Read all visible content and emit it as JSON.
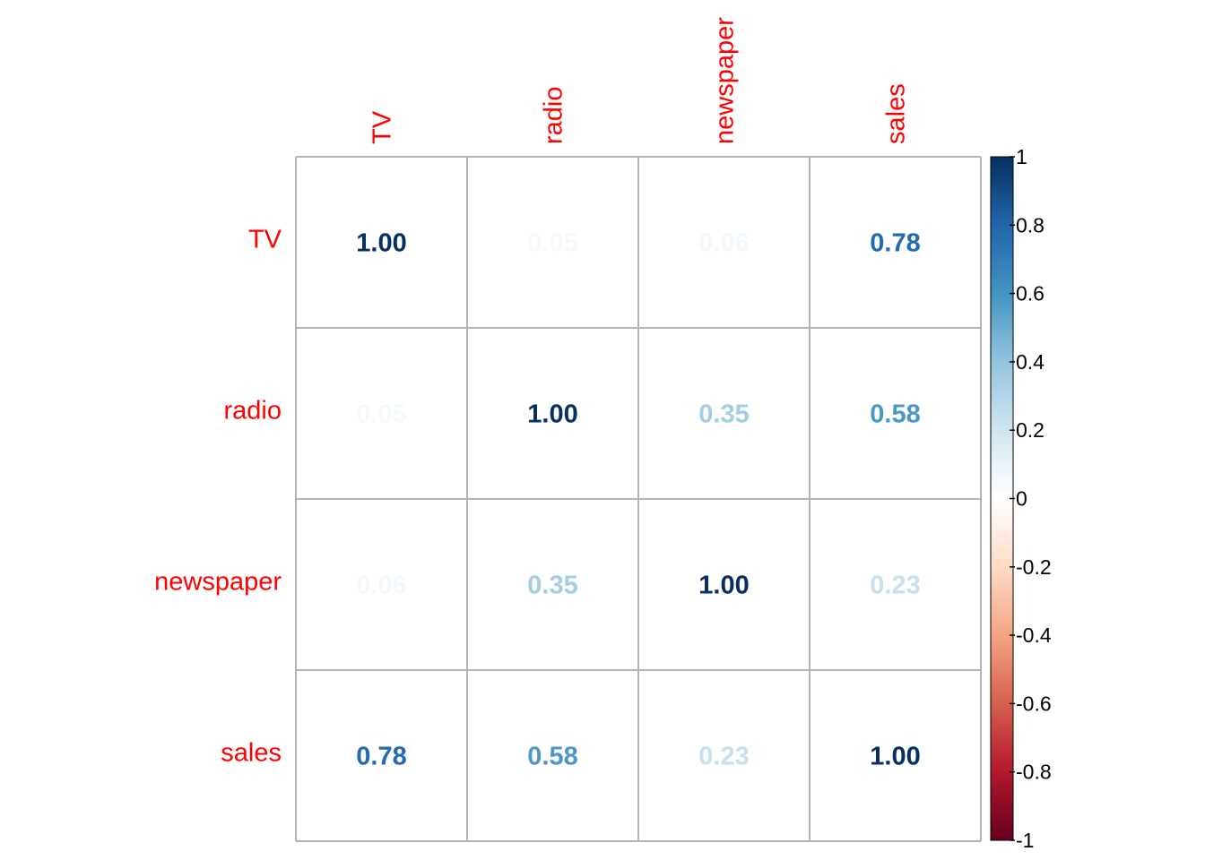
{
  "chart_data": {
    "type": "heatmap",
    "method": "number",
    "variables": [
      "TV",
      "radio",
      "newspaper",
      "sales"
    ],
    "matrix": [
      [
        1.0,
        0.05,
        0.06,
        0.78
      ],
      [
        0.05,
        1.0,
        0.35,
        0.58
      ],
      [
        0.06,
        0.35,
        1.0,
        0.23
      ],
      [
        0.78,
        0.58,
        0.23,
        1.0
      ]
    ],
    "value_labels": [
      [
        "1.00",
        "0.05",
        "0.06",
        "0.78"
      ],
      [
        "0.05",
        "1.00",
        "0.35",
        "0.58"
      ],
      [
        "0.06",
        "0.35",
        "1.00",
        "0.23"
      ],
      [
        "0.78",
        "0.58",
        "0.23",
        "1.00"
      ]
    ],
    "label_color": "#ff0000",
    "grid_color": "#b3b3b3",
    "colorbar": {
      "range": [
        -1,
        1
      ],
      "ticks": [
        "1",
        "0.8",
        "0.6",
        "0.4",
        "0.2",
        "0",
        "-0.2",
        "-0.4",
        "-0.6",
        "-0.8",
        "-1"
      ],
      "tick_values": [
        1,
        0.8,
        0.6,
        0.4,
        0.2,
        0,
        -0.2,
        -0.4,
        -0.6,
        -0.8,
        -1
      ],
      "colors": [
        "#67001f",
        "#b2182b",
        "#d6604d",
        "#f4a582",
        "#fddbc7",
        "#ffffff",
        "#d1e5f0",
        "#92c5de",
        "#4393c3",
        "#2166ac",
        "#053061"
      ]
    }
  }
}
